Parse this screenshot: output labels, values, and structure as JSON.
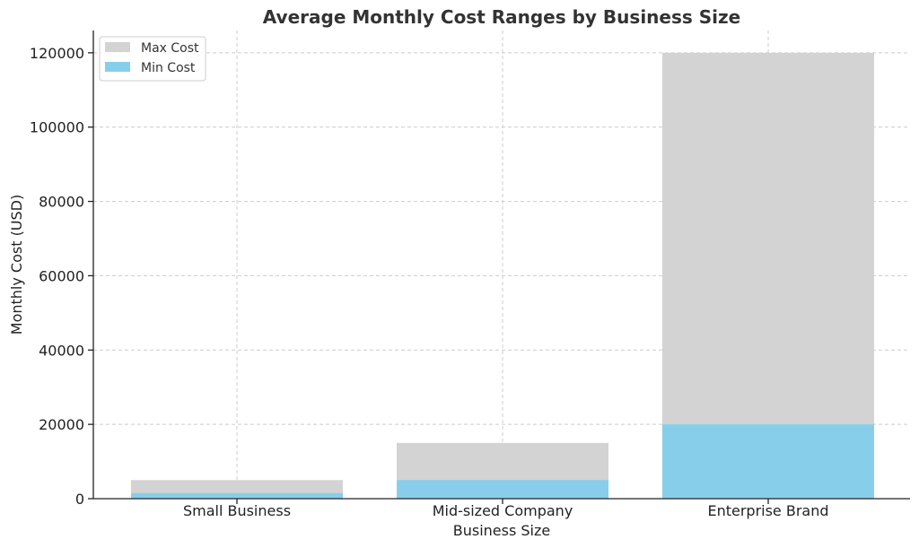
{
  "chart_data": {
    "type": "bar",
    "title": "Average Monthly Cost Ranges by Business Size",
    "xlabel": "Business Size",
    "ylabel": "Monthly Cost (USD)",
    "categories": [
      "Small Business",
      "Mid-sized Company",
      "Enterprise Brand"
    ],
    "series": [
      {
        "name": "Max Cost",
        "values": [
          5000,
          15000,
          120000
        ],
        "color": "#d3d3d3"
      },
      {
        "name": "Min Cost",
        "values": [
          1500,
          5000,
          20000
        ],
        "color": "#87ceeb"
      }
    ],
    "overlay": true,
    "ylim": [
      0,
      126000
    ],
    "yticks": [
      0,
      20000,
      40000,
      60000,
      80000,
      100000,
      120000
    ],
    "grid": true,
    "legend_position": "top-left"
  }
}
